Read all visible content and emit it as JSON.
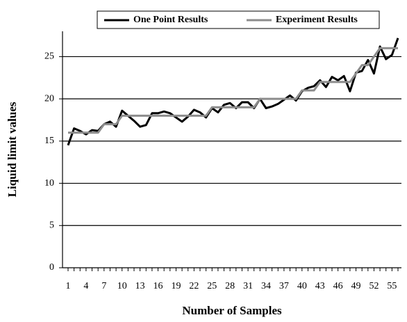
{
  "chart_data": {
    "type": "line",
    "xlabel": "Number of Samples",
    "ylabel": "Liquid limit values",
    "categories": [
      "1",
      null,
      null,
      "4",
      null,
      null,
      "7",
      null,
      null,
      "10",
      null,
      null,
      "13",
      null,
      null,
      "16",
      null,
      null,
      "19",
      null,
      null,
      "22",
      null,
      null,
      "25",
      null,
      null,
      "28",
      null,
      null,
      "31",
      null,
      null,
      "34",
      null,
      null,
      "37",
      null,
      null,
      "40",
      null,
      null,
      "43",
      null,
      null,
      "46",
      null,
      null,
      "49",
      null,
      null,
      "52",
      null,
      null,
      "55",
      null
    ],
    "series": [
      {
        "name": "One Point Results",
        "color": "#000000",
        "values": [
          14.5,
          16.5,
          16.2,
          15.8,
          16.3,
          16.2,
          17.0,
          17.3,
          16.7,
          18.6,
          18.0,
          17.4,
          16.7,
          16.9,
          18.3,
          18.3,
          18.5,
          18.3,
          17.8,
          17.3,
          17.9,
          18.7,
          18.4,
          17.8,
          18.9,
          18.4,
          19.3,
          19.5,
          18.9,
          19.6,
          19.6,
          18.9,
          20.0,
          18.9,
          19.1,
          19.4,
          19.9,
          20.4,
          19.8,
          20.9,
          21.3,
          21.5,
          22.2,
          21.4,
          22.6,
          22.2,
          22.7,
          20.9,
          23.1,
          23.3,
          24.6,
          23.0,
          26.2,
          24.7,
          25.2,
          27.2
        ]
      },
      {
        "name": "Experiment Results",
        "color": "#8c8c8c",
        "values": [
          16,
          16,
          16,
          16,
          16,
          16,
          17,
          17,
          17,
          18,
          18,
          18,
          18,
          18,
          18,
          18,
          18,
          18,
          18,
          18,
          18,
          18,
          18,
          18,
          19,
          19,
          19,
          19,
          19,
          19,
          19,
          19,
          20,
          20,
          20,
          20,
          20,
          20,
          20,
          21,
          21,
          21,
          22,
          22,
          22,
          22,
          22,
          22,
          23,
          24,
          24,
          25,
          26,
          26,
          26,
          26
        ]
      }
    ],
    "ylim": [
      0,
      28
    ],
    "yticks": [
      0,
      5,
      10,
      15,
      20,
      25
    ],
    "grid": true
  }
}
